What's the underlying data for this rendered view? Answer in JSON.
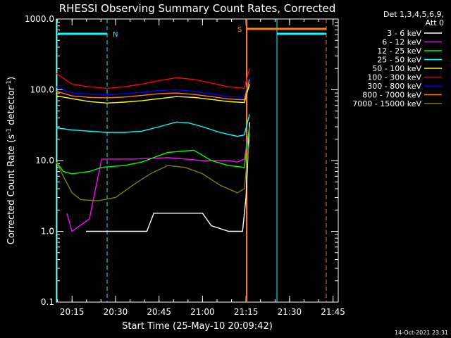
{
  "chart_data": {
    "type": "line",
    "title": "RHESSI Observing Summary Count Rates, Corrected",
    "xlabel": "Start Time (25-May-10 20:09:42)",
    "ylabel": "Corrected Count Rate (s-1 detector-1)",
    "ylabel_parts": {
      "pre": "Corrected Count Rate (s",
      "sup1": "-1",
      "mid": " detector",
      "sup2": "-1",
      "post": ")"
    },
    "yscale": "log",
    "ylim": [
      0.1,
      1000
    ],
    "xlim_minutes": [
      20.16,
      21.78
    ],
    "x_ticks": [
      "20:15",
      "20:30",
      "20:45",
      "21:00",
      "21:15",
      "21:30",
      "21:45"
    ],
    "y_ticks": [
      "0.1",
      "1.0",
      "10.0",
      "100.0",
      "1000.0"
    ],
    "detector_info": [
      "Det 1,3,4,5,6,9,",
      "Att 0"
    ],
    "legend_position": "top-right, outside plot",
    "flag_labels": [
      "N",
      "S"
    ],
    "timestamp": "14-Oct-2021 23:31",
    "series": [
      {
        "name": "3 - 6 keV",
        "color": "#000000",
        "points": [
          [
            20.33,
            1.0
          ],
          [
            20.5,
            1.0
          ],
          [
            20.68,
            1.0
          ],
          [
            20.72,
            1.8
          ],
          [
            20.85,
            1.8
          ],
          [
            20.95,
            1.8
          ],
          [
            21.0,
            1.8
          ],
          [
            21.05,
            1.2
          ],
          [
            21.15,
            1.0
          ],
          [
            21.23,
            1.0
          ],
          [
            21.25,
            3.0
          ],
          [
            21.27,
            35
          ]
        ]
      },
      {
        "name": "6 - 12 keV",
        "color": "#ff00ff",
        "points": [
          [
            20.22,
            1.8
          ],
          [
            20.25,
            1.0
          ],
          [
            20.35,
            1.5
          ],
          [
            20.42,
            10.5
          ],
          [
            20.6,
            10.5
          ],
          [
            20.8,
            11
          ],
          [
            21.0,
            10
          ],
          [
            21.15,
            10.0
          ],
          [
            21.2,
            9.5
          ],
          [
            21.24,
            10.5
          ],
          [
            21.27,
            30
          ]
        ]
      },
      {
        "name": "12 - 25 keV",
        "color": "#00ff00",
        "points": [
          [
            20.16,
            9.5
          ],
          [
            20.2,
            7.0
          ],
          [
            20.25,
            6.5
          ],
          [
            20.35,
            7.0
          ],
          [
            20.42,
            8.0
          ],
          [
            20.55,
            8.5
          ],
          [
            20.65,
            9.5
          ],
          [
            20.8,
            13
          ],
          [
            20.95,
            14
          ],
          [
            21.05,
            10
          ],
          [
            21.15,
            8.5
          ],
          [
            21.24,
            8.0
          ],
          [
            21.27,
            30
          ]
        ]
      },
      {
        "name": "25 - 50 keV",
        "color": "#00ffff",
        "points": [
          [
            20.16,
            29
          ],
          [
            20.25,
            27
          ],
          [
            20.35,
            26
          ],
          [
            20.45,
            25
          ],
          [
            20.55,
            25
          ],
          [
            20.65,
            26
          ],
          [
            20.75,
            30
          ],
          [
            20.85,
            35
          ],
          [
            20.92,
            34
          ],
          [
            21.0,
            30
          ],
          [
            21.1,
            25
          ],
          [
            21.2,
            22
          ],
          [
            21.24,
            23
          ],
          [
            21.27,
            45
          ]
        ]
      },
      {
        "name": "50 - 100 keV",
        "color": "#ffff00",
        "points": [
          [
            20.16,
            82
          ],
          [
            20.25,
            75
          ],
          [
            20.35,
            68
          ],
          [
            20.45,
            65
          ],
          [
            20.55,
            67
          ],
          [
            20.65,
            70
          ],
          [
            20.75,
            75
          ],
          [
            20.85,
            80
          ],
          [
            20.95,
            78
          ],
          [
            21.05,
            73
          ],
          [
            21.15,
            68
          ],
          [
            21.24,
            66
          ],
          [
            21.27,
            120
          ]
        ]
      },
      {
        "name": "100 - 300 keV",
        "color": "#ff0000",
        "points": [
          [
            20.16,
            170
          ],
          [
            20.25,
            120
          ],
          [
            20.35,
            110
          ],
          [
            20.45,
            105
          ],
          [
            20.55,
            110
          ],
          [
            20.65,
            120
          ],
          [
            20.75,
            135
          ],
          [
            20.85,
            148
          ],
          [
            20.95,
            140
          ],
          [
            21.05,
            125
          ],
          [
            21.15,
            110
          ],
          [
            21.24,
            105
          ],
          [
            21.27,
            200
          ]
        ]
      },
      {
        "name": "300 - 800 keV",
        "color": "#0000ff",
        "points": [
          [
            20.16,
            110
          ],
          [
            20.25,
            90
          ],
          [
            20.35,
            87
          ],
          [
            20.45,
            85
          ],
          [
            20.55,
            88
          ],
          [
            20.65,
            92
          ],
          [
            20.75,
            98
          ],
          [
            20.85,
            100
          ],
          [
            20.95,
            95
          ],
          [
            21.05,
            88
          ],
          [
            21.15,
            80
          ],
          [
            21.24,
            78
          ],
          [
            21.27,
            150
          ]
        ]
      },
      {
        "name": "800 - 7000 keV",
        "color": "#ff8000",
        "points": [
          [
            20.16,
            95
          ],
          [
            20.25,
            82
          ],
          [
            20.35,
            78
          ],
          [
            20.45,
            77
          ],
          [
            20.55,
            79
          ],
          [
            20.65,
            83
          ],
          [
            20.75,
            88
          ],
          [
            20.85,
            90
          ],
          [
            20.95,
            86
          ],
          [
            21.05,
            80
          ],
          [
            21.15,
            74
          ],
          [
            21.24,
            72
          ],
          [
            21.27,
            140
          ]
        ]
      },
      {
        "name": "7000 - 15000 keV",
        "color": "#808000",
        "points": [
          [
            20.16,
            9.5
          ],
          [
            20.2,
            6.0
          ],
          [
            20.25,
            3.5
          ],
          [
            20.3,
            2.8
          ],
          [
            20.4,
            2.7
          ],
          [
            20.5,
            3.0
          ],
          [
            20.6,
            4.5
          ],
          [
            20.7,
            6.5
          ],
          [
            20.8,
            8.5
          ],
          [
            20.9,
            8.0
          ],
          [
            21.0,
            6.5
          ],
          [
            21.1,
            4.5
          ],
          [
            21.2,
            3.5
          ],
          [
            21.24,
            4.0
          ],
          [
            21.27,
            20
          ]
        ]
      }
    ]
  }
}
